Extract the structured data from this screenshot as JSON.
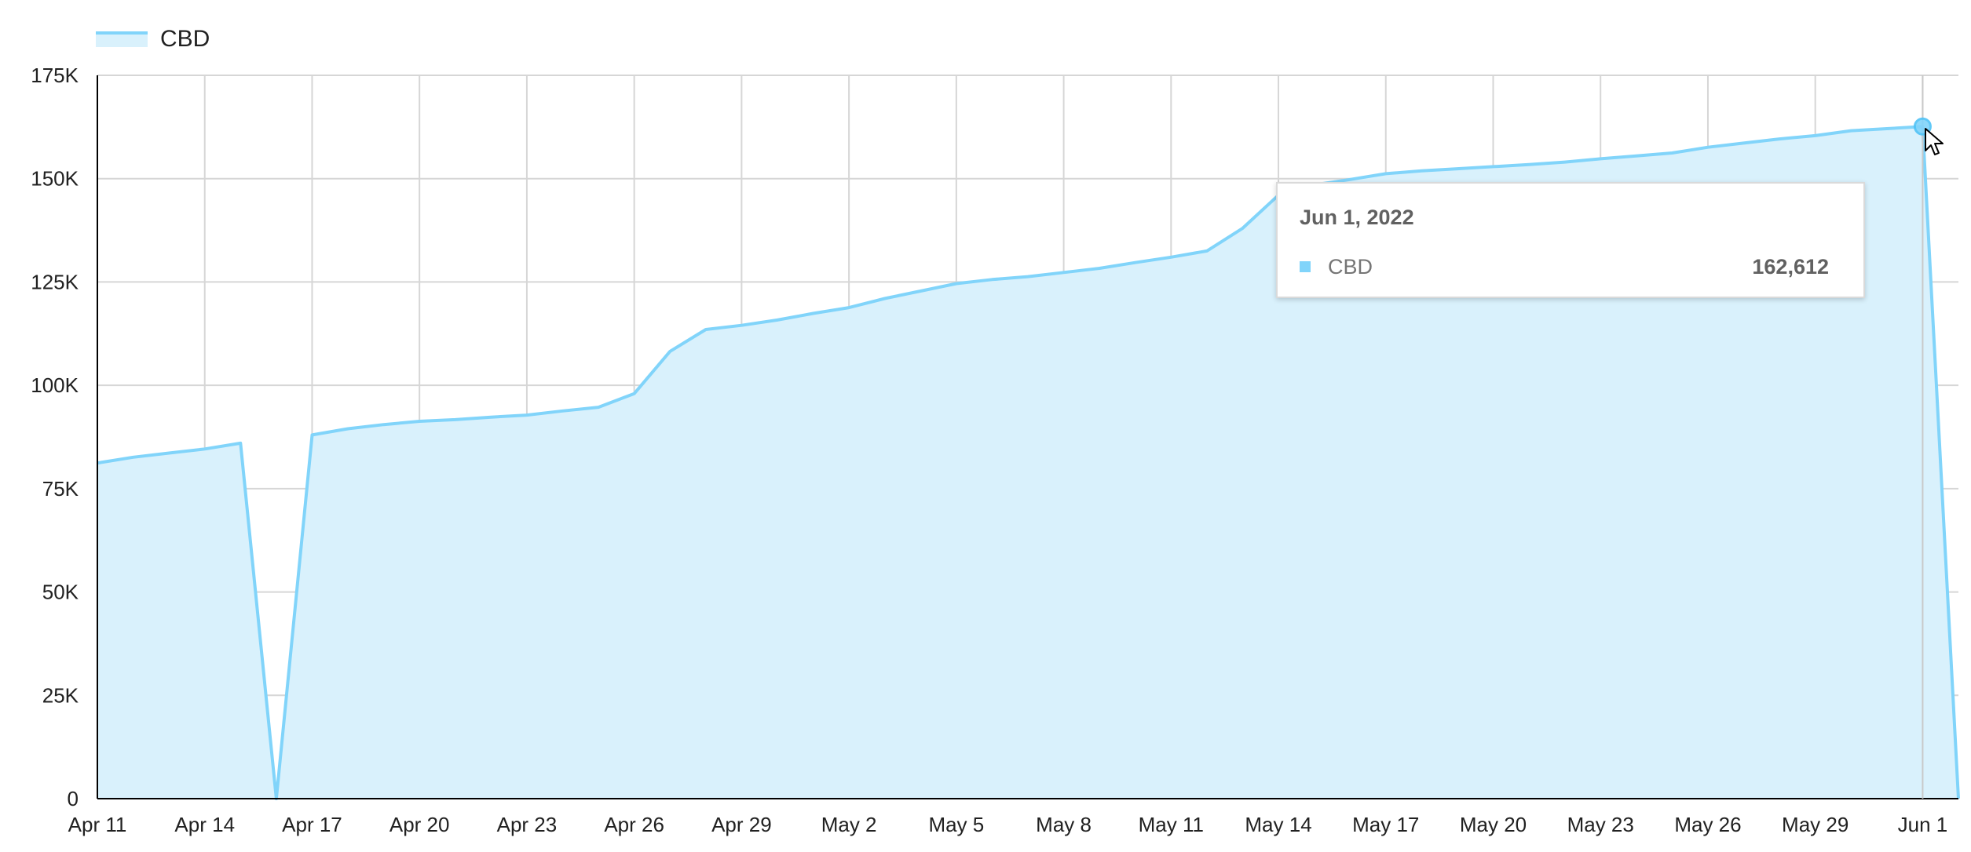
{
  "legend": {
    "label": "CBD"
  },
  "tooltip": {
    "date": "Jun 1, 2022",
    "series": "CBD",
    "value": "162,612"
  },
  "colors": {
    "line": "#81d4fa",
    "fill": "#d9f1fc",
    "grid": "#d6d6d6",
    "axis": "#000000"
  },
  "chart_data": {
    "type": "area",
    "title": "",
    "xlabel": "",
    "ylabel": "",
    "ylim": [
      0,
      175000
    ],
    "yticks": [
      0,
      25000,
      50000,
      75000,
      100000,
      125000,
      150000,
      175000
    ],
    "ytick_labels": [
      "0",
      "25K",
      "50K",
      "75K",
      "100K",
      "125K",
      "150K",
      "175K"
    ],
    "xtick_labels": [
      "Apr 11",
      "Apr 14",
      "Apr 17",
      "Apr 20",
      "Apr 23",
      "Apr 26",
      "Apr 29",
      "May 2",
      "May 5",
      "May 8",
      "May 11",
      "May 14",
      "May 17",
      "May 20",
      "May 23",
      "May 26",
      "May 29",
      "Jun 1"
    ],
    "xtick_dates": [
      "2022-04-11",
      "2022-04-14",
      "2022-04-17",
      "2022-04-20",
      "2022-04-23",
      "2022-04-26",
      "2022-04-29",
      "2022-05-02",
      "2022-05-05",
      "2022-05-08",
      "2022-05-11",
      "2022-05-14",
      "2022-05-17",
      "2022-05-20",
      "2022-05-23",
      "2022-05-26",
      "2022-05-29",
      "2022-06-01"
    ],
    "grid": true,
    "legend_position": "top-left",
    "series": [
      {
        "name": "CBD",
        "x": [
          "2022-04-11",
          "2022-04-12",
          "2022-04-13",
          "2022-04-14",
          "2022-04-15",
          "2022-04-16",
          "2022-04-17",
          "2022-04-18",
          "2022-04-19",
          "2022-04-20",
          "2022-04-21",
          "2022-04-22",
          "2022-04-23",
          "2022-04-24",
          "2022-04-25",
          "2022-04-26",
          "2022-04-27",
          "2022-04-28",
          "2022-04-29",
          "2022-04-30",
          "2022-05-01",
          "2022-05-02",
          "2022-05-03",
          "2022-05-04",
          "2022-05-05",
          "2022-05-06",
          "2022-05-07",
          "2022-05-08",
          "2022-05-09",
          "2022-05-10",
          "2022-05-11",
          "2022-05-12",
          "2022-05-13",
          "2022-05-14",
          "2022-05-15",
          "2022-05-16",
          "2022-05-17",
          "2022-05-18",
          "2022-05-19",
          "2022-05-20",
          "2022-05-21",
          "2022-05-22",
          "2022-05-23",
          "2022-05-24",
          "2022-05-25",
          "2022-05-26",
          "2022-05-27",
          "2022-05-28",
          "2022-05-29",
          "2022-05-30",
          "2022-05-31",
          "2022-06-01",
          "2022-06-02"
        ],
        "values": [
          81200,
          82600,
          83600,
          84600,
          86000,
          0,
          88000,
          89500,
          90500,
          91300,
          91700,
          92300,
          92800,
          93800,
          94700,
          98000,
          108200,
          113500,
          114500,
          115800,
          117400,
          118800,
          121000,
          122800,
          124600,
          125600,
          126300,
          127300,
          128300,
          129700,
          131000,
          132500,
          138000,
          146000,
          148500,
          149800,
          151200,
          151900,
          152400,
          152900,
          153400,
          154000,
          154800,
          155500,
          156200,
          157600,
          158600,
          159600,
          160400,
          161600,
          162100,
          162612,
          0
        ]
      }
    ]
  }
}
